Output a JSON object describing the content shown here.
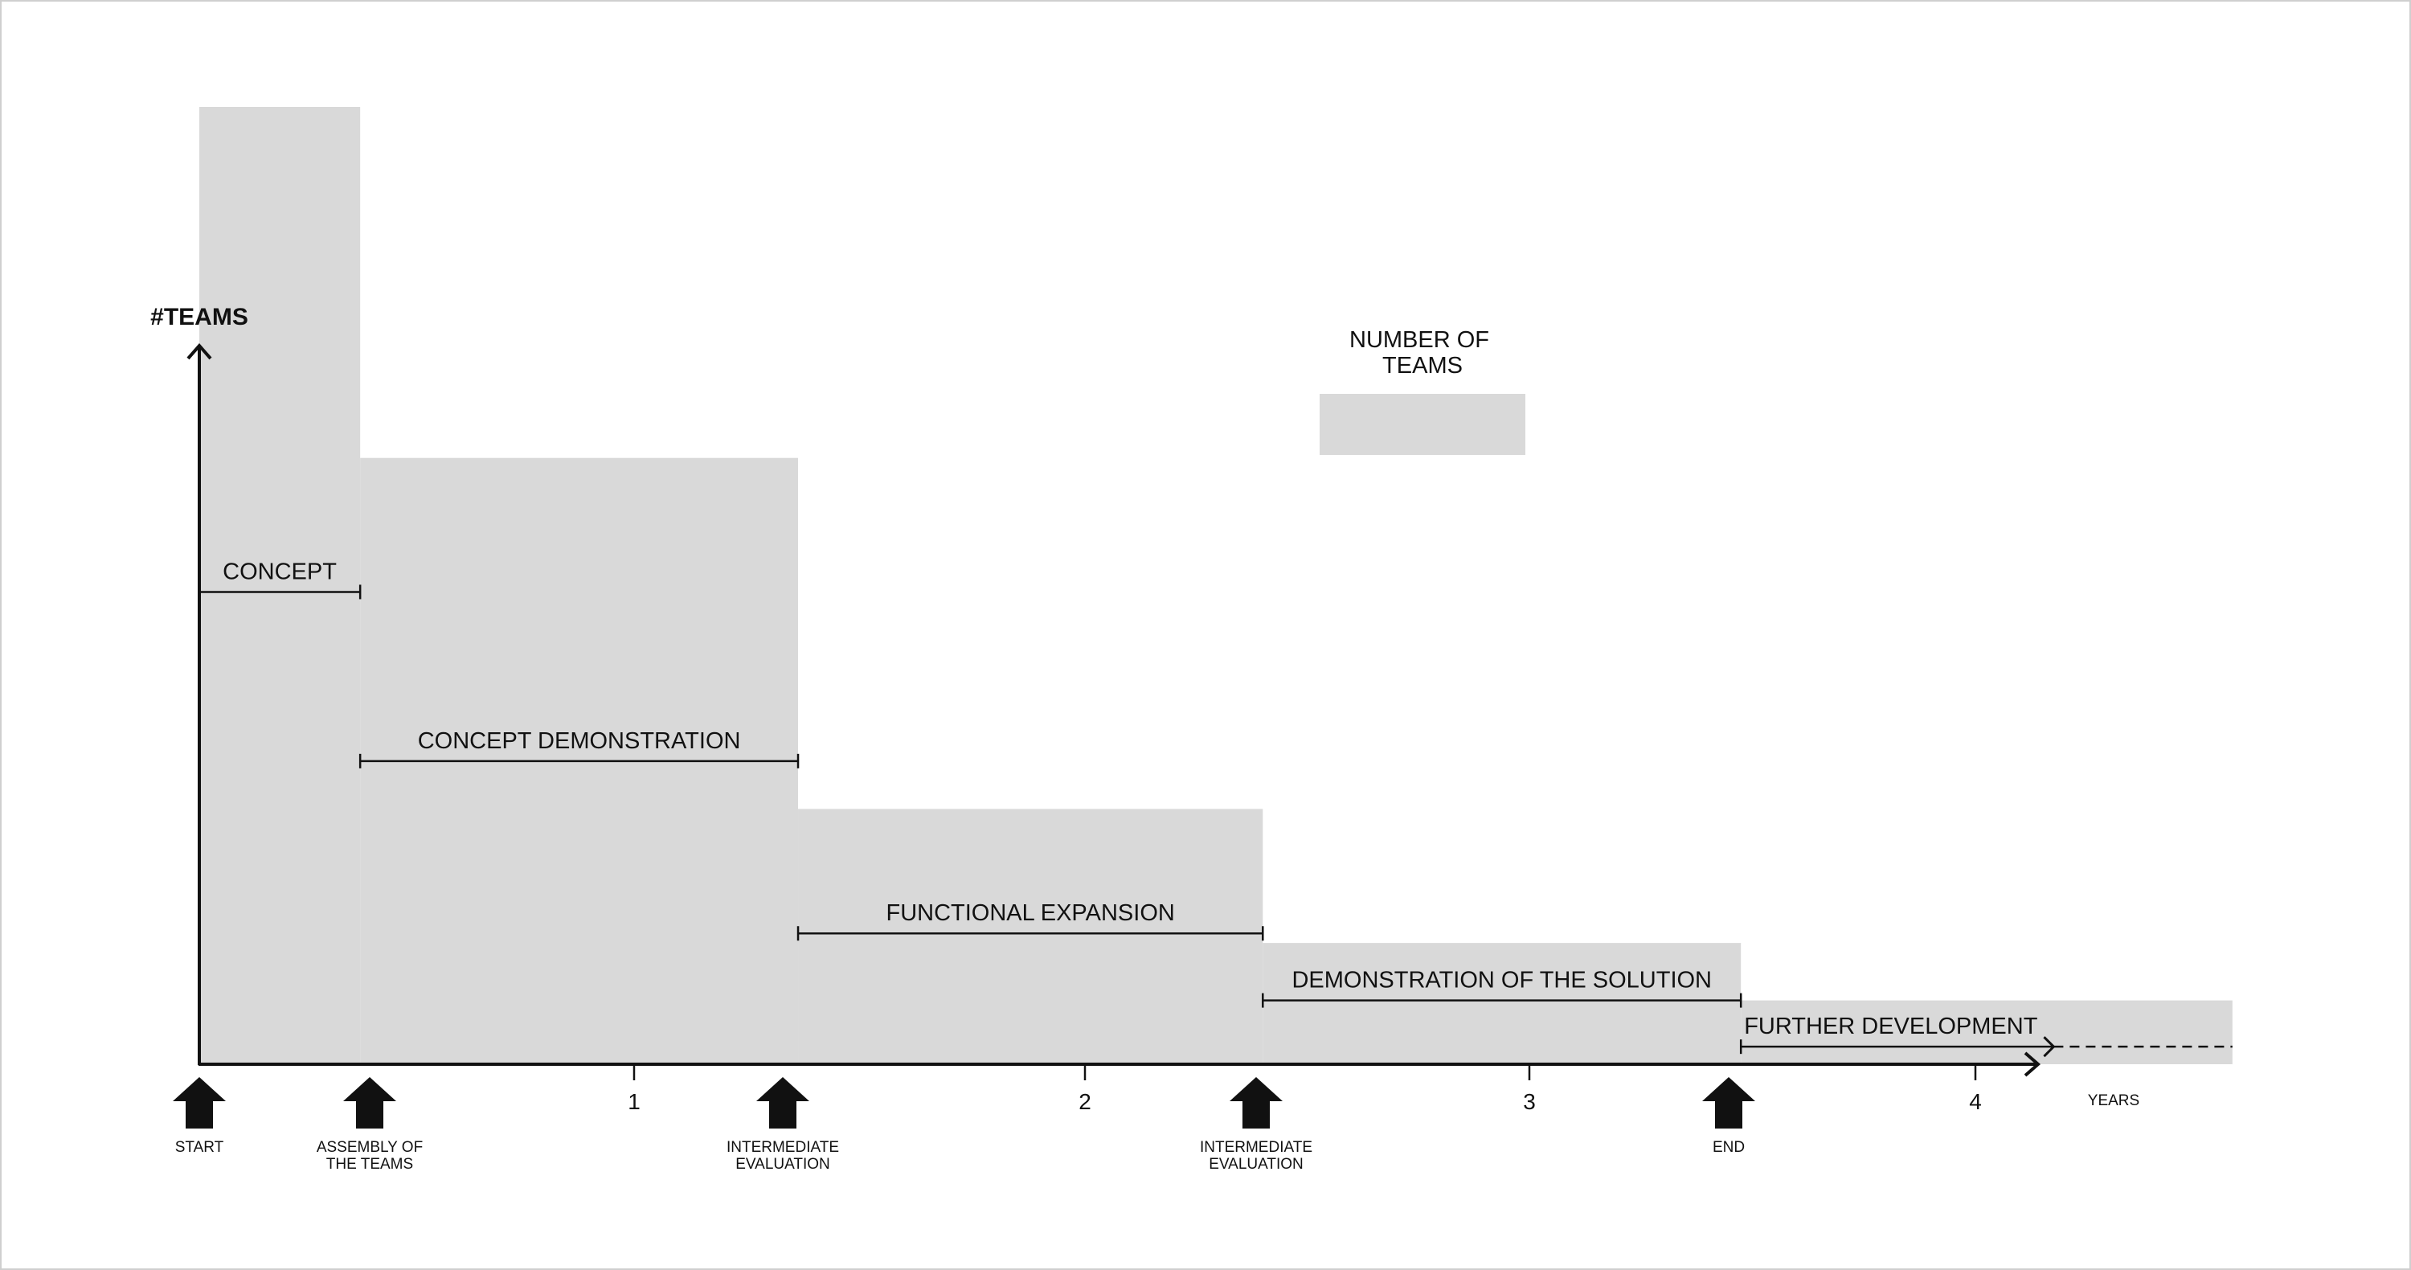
{
  "chart_data": {
    "type": "area",
    "ylabel": "#TEAMS",
    "xlabel": "YEARS",
    "x_ticks": [
      "1",
      "2",
      "3",
      "4"
    ],
    "legend": {
      "label": "NUMBER OF\nTEAMS",
      "color": "#d9d9d9"
    },
    "series": [
      {
        "name": "NUMBER OF TEAMS",
        "steps": [
          {
            "x_start": 0.0,
            "x_end": 0.36,
            "teams": 30
          },
          {
            "x_start": 0.36,
            "x_end": 1.34,
            "teams": 19
          },
          {
            "x_start": 1.34,
            "x_end": 2.38,
            "teams": 8
          },
          {
            "x_start": 2.38,
            "x_end": 3.45,
            "teams": 3.8
          },
          {
            "x_start": 3.45,
            "x_end": 4.55,
            "teams": 2
          }
        ]
      }
    ],
    "phases": [
      {
        "label": "CONCEPT",
        "x_start": 0.0,
        "x_end": 0.36,
        "level": 14.8
      },
      {
        "label": "CONCEPT DEMONSTRATION",
        "x_start": 0.36,
        "x_end": 1.34,
        "level": 9.5
      },
      {
        "label": "FUNCTIONAL EXPANSION",
        "x_start": 1.34,
        "x_end": 2.38,
        "level": 4.1
      },
      {
        "label": "DEMONSTRATION OF THE SOLUTION",
        "x_start": 2.38,
        "x_end": 3.45,
        "level": 2.0
      },
      {
        "label": "FURTHER DEVELOPMENT",
        "x_start": 3.45,
        "x_end": 4.55,
        "level": 0.55,
        "dashed_from": 4.15
      }
    ],
    "milestones": [
      {
        "label": [
          "START"
        ],
        "x": 0.0
      },
      {
        "label": [
          "ASSEMBLY OF",
          "THE TEAMS"
        ],
        "x": 0.36
      },
      {
        "label": [
          "INTERMEDIATE",
          "EVALUATION"
        ],
        "x": 1.34
      },
      {
        "label": [
          "INTERMEDIATE",
          "EVALUATION"
        ],
        "x": 2.38
      },
      {
        "label": [
          "END"
        ],
        "x": 3.45
      }
    ]
  },
  "colors": {
    "area": "#d9d9d9",
    "ink": "#111111",
    "frame": "#cfcfcf"
  }
}
